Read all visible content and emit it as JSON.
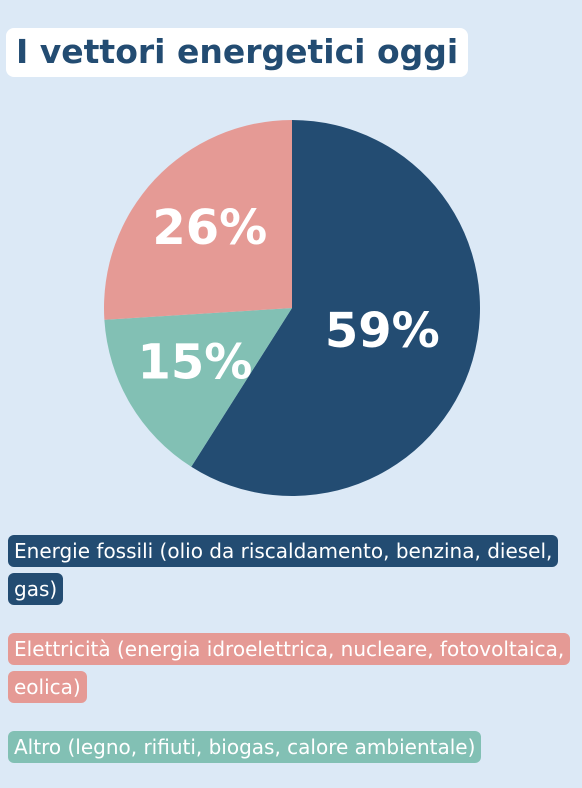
{
  "chart_data": {
    "type": "pie",
    "title": "I vettori energetici oggi",
    "categories": [
      "Energie fossili (olio da riscaldamento, benzina, diesel, gas)",
      "Altro (legno, rifiuti, biogas, calore ambientale)",
      "Elettricità (energia idroelettrica, nucleare, fotovoltaica, eolica)"
    ],
    "values": [
      59,
      15,
      26
    ],
    "value_labels": [
      "59%",
      "15%",
      "26%"
    ],
    "colors": [
      "#234c72",
      "#82c0b4",
      "#e59a95"
    ],
    "legend_order": [
      0,
      2,
      1
    ]
  }
}
